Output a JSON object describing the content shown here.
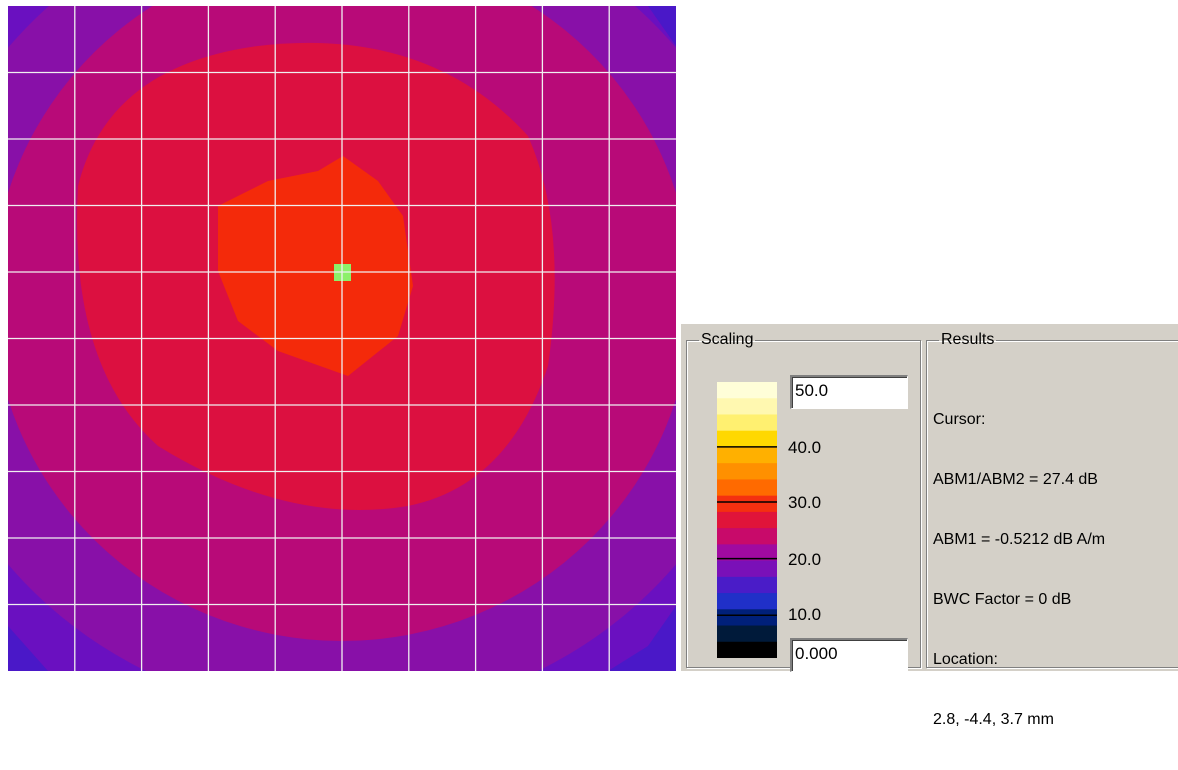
{
  "heatmap": {
    "colors": {
      "outer": "#5a14c8",
      "mid1": "#8a10a8",
      "mid2": "#c00a6a",
      "mid3": "#dc1040",
      "core": "#f42a0a",
      "marker": "#8cf06a",
      "grid": "#f0f0f0"
    },
    "grid_divisions": 10
  },
  "scaling": {
    "legend": "Scaling",
    "max_value": "50.0",
    "min_value": "0.000",
    "ticks": [
      "40.0",
      "30.0",
      "20.0",
      "10.0"
    ],
    "color_bands": [
      "#fffed8",
      "#fff8b0",
      "#fff070",
      "#ffd800",
      "#ffb000",
      "#ff9000",
      "#ff6a00",
      "#f43010",
      "#e0143a",
      "#c80a6a",
      "#a00aa0",
      "#7a10b8",
      "#4a1cc8",
      "#2030c8",
      "#00207a",
      "#001a3a",
      "#000000"
    ]
  },
  "results": {
    "legend": "Results",
    "lines": [
      "Cursor:",
      "ABM1/ABM2 = 27.4 dB",
      "ABM1 = -0.5212 dB A/m",
      "BWC Factor = 0 dB",
      "Location:",
      "2.8, -4.4, 3.7 mm"
    ]
  }
}
